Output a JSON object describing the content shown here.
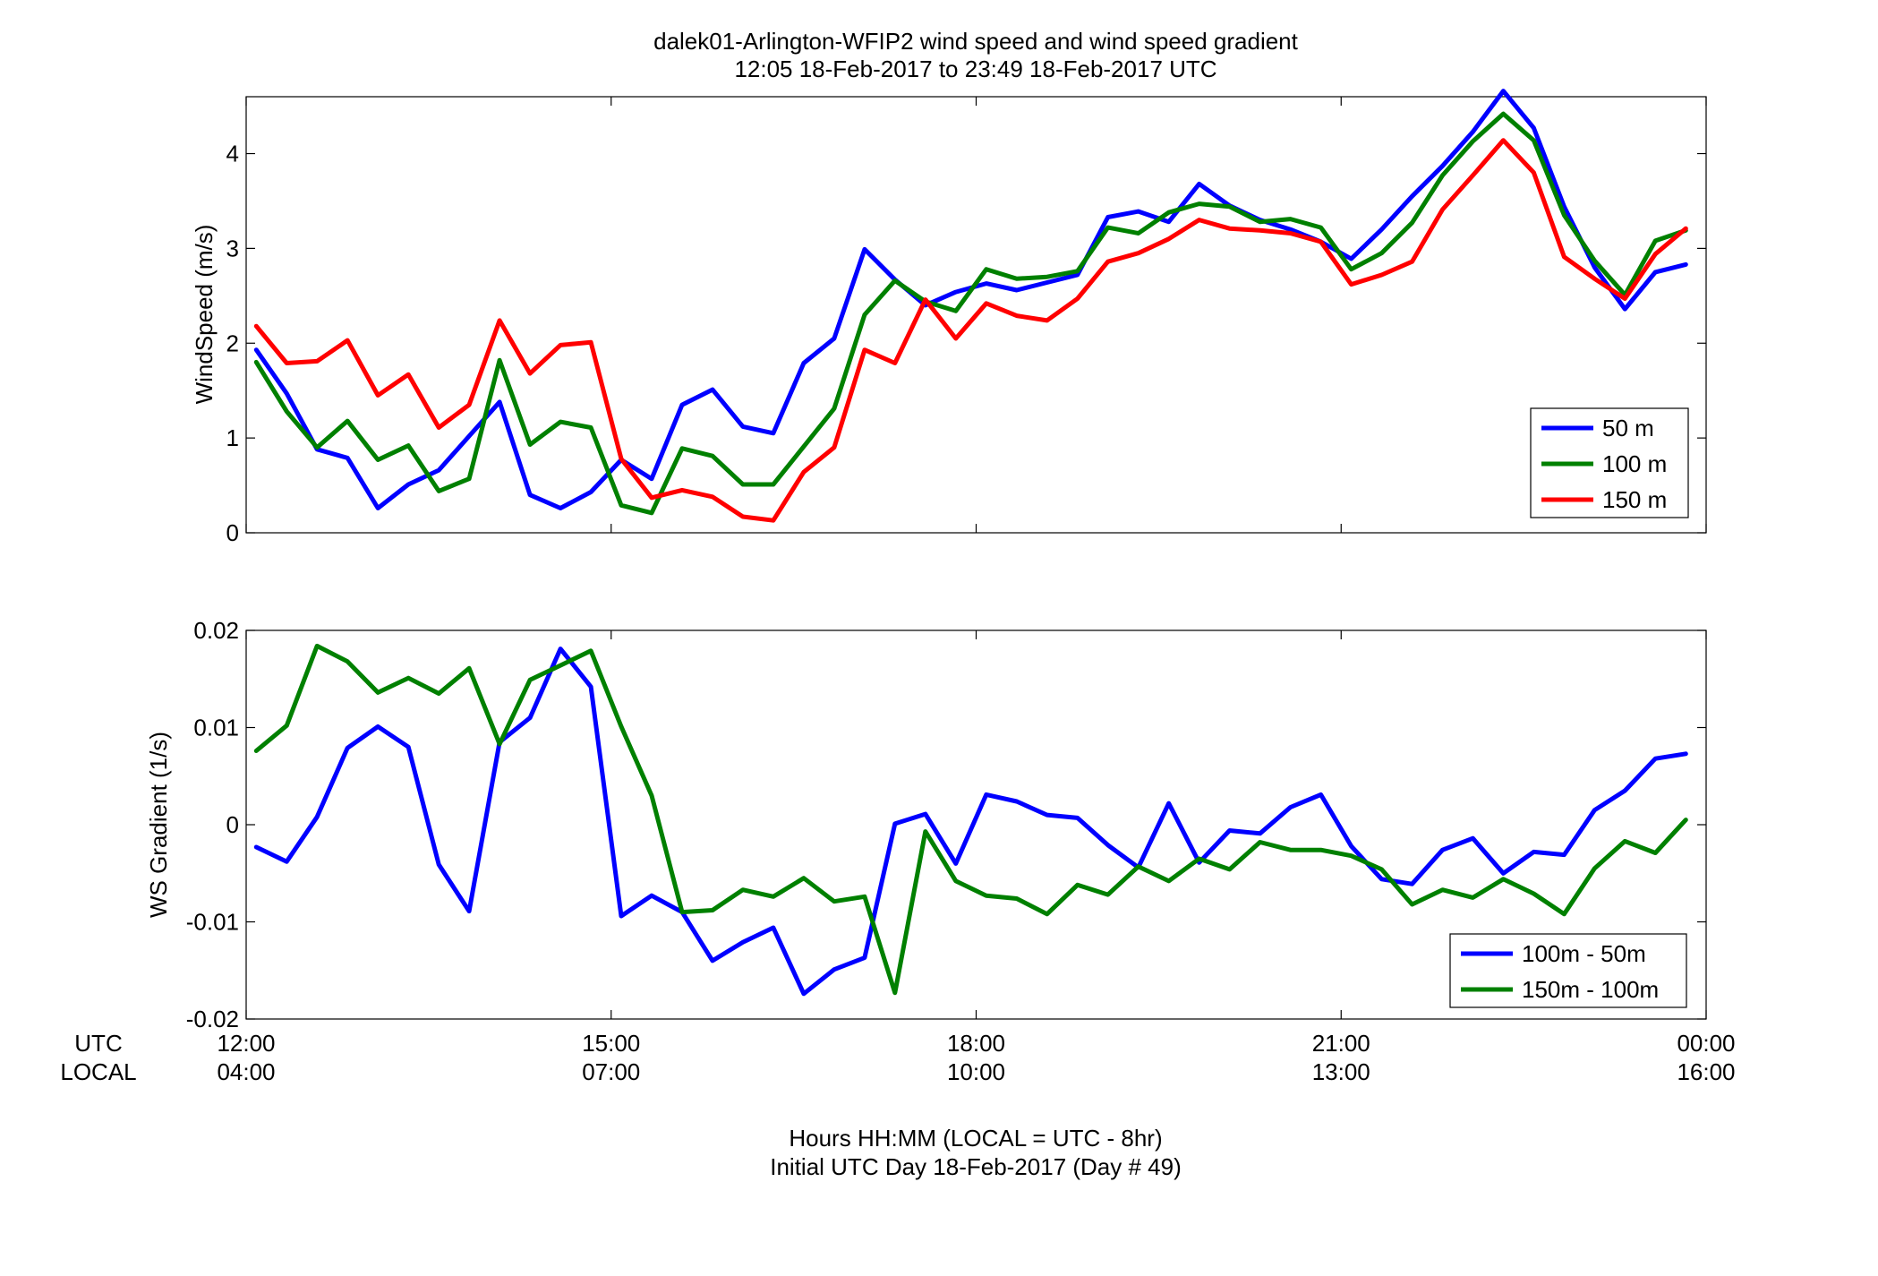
{
  "figure": {
    "title_line1": "dalek01-Arlington-WFIP2  wind speed and wind speed gradient",
    "title_line2": "12:05 18-Feb-2017 to 23:49 18-Feb-2017  UTC",
    "xlabel_line1": "Hours HH:MM  (LOCAL = UTC - 8hr)",
    "xlabel_line2": "Initial UTC Day 18-Feb-2017 (Day # 49)",
    "utc_row_label": "UTC",
    "local_row_label": "LOCAL"
  },
  "chart_data": [
    {
      "type": "line",
      "ylabel": "WindSpeed (m/s)",
      "xlim": [
        12.0,
        24.0
      ],
      "ylim": [
        0,
        4.6
      ],
      "yticks": [
        0,
        1,
        2,
        3,
        4
      ],
      "ytick_labels": [
        "0",
        "1",
        "2",
        "3",
        "4"
      ],
      "grid": false,
      "legend_position": "bottom-right",
      "x_hours": [
        12.083,
        12.333,
        12.583,
        12.833,
        13.083,
        13.333,
        13.583,
        13.833,
        14.083,
        14.333,
        14.583,
        14.833,
        15.083,
        15.333,
        15.583,
        15.833,
        16.083,
        16.333,
        16.583,
        16.833,
        17.083,
        17.333,
        17.583,
        17.833,
        18.083,
        18.333,
        18.583,
        18.833,
        19.083,
        19.333,
        19.583,
        19.833,
        20.083,
        20.333,
        20.583,
        20.833,
        21.083,
        21.333,
        21.583,
        21.833,
        22.083,
        22.333,
        22.583,
        22.833,
        23.083,
        23.333,
        23.583,
        23.833
      ],
      "series": [
        {
          "name": "50 m",
          "color": "#0000ff",
          "values": [
            1.93,
            1.47,
            0.88,
            0.79,
            0.26,
            0.51,
            0.66,
            1.02,
            1.38,
            0.4,
            0.26,
            0.43,
            0.77,
            0.57,
            1.35,
            1.51,
            1.12,
            1.05,
            1.79,
            2.05,
            2.99,
            2.67,
            2.4,
            2.54,
            2.63,
            2.56,
            2.64,
            2.72,
            3.33,
            3.39,
            3.28,
            3.68,
            3.45,
            3.3,
            3.2,
            3.07,
            2.89,
            3.2,
            3.55,
            3.87,
            4.23,
            4.66,
            4.27,
            3.44,
            2.8,
            2.36,
            2.75,
            2.83
          ]
        },
        {
          "name": "100 m",
          "color": "#008000",
          "values": [
            1.8,
            1.28,
            0.9,
            1.18,
            0.77,
            0.92,
            0.44,
            0.57,
            1.82,
            0.93,
            1.17,
            1.11,
            0.29,
            0.21,
            0.89,
            0.81,
            0.51,
            0.51,
            0.91,
            1.31,
            2.3,
            2.66,
            2.44,
            2.34,
            2.78,
            2.68,
            2.7,
            2.76,
            3.22,
            3.16,
            3.38,
            3.47,
            3.44,
            3.28,
            3.31,
            3.22,
            2.78,
            2.95,
            3.27,
            3.77,
            4.13,
            4.42,
            4.14,
            3.35,
            2.87,
            2.51,
            3.08,
            3.19
          ]
        },
        {
          "name": "150 m",
          "color": "#ff0000",
          "values": [
            2.18,
            1.79,
            1.81,
            2.03,
            1.45,
            1.67,
            1.11,
            1.35,
            2.24,
            1.68,
            1.98,
            2.01,
            0.78,
            0.37,
            0.45,
            0.38,
            0.17,
            0.13,
            0.64,
            0.9,
            1.93,
            1.79,
            2.46,
            2.05,
            2.42,
            2.29,
            2.24,
            2.47,
            2.86,
            2.95,
            3.1,
            3.3,
            3.21,
            3.19,
            3.16,
            3.07,
            2.62,
            2.72,
            2.86,
            3.41,
            3.77,
            4.14,
            3.8,
            2.91,
            2.68,
            2.47,
            2.94,
            3.21
          ]
        }
      ]
    },
    {
      "type": "line",
      "ylabel": "WS Gradient (1/s)",
      "xlim": [
        12.0,
        24.0
      ],
      "ylim": [
        -0.02,
        0.02
      ],
      "yticks": [
        -0.02,
        -0.01,
        0,
        0.01,
        0.02
      ],
      "ytick_labels": [
        "-0.02",
        "-0.01",
        "0",
        "0.01",
        "0.02"
      ],
      "grid": false,
      "legend_position": "bottom-right",
      "x_hours": [
        12.083,
        12.333,
        12.583,
        12.833,
        13.083,
        13.333,
        13.583,
        13.833,
        14.083,
        14.333,
        14.583,
        14.833,
        15.083,
        15.333,
        15.583,
        15.833,
        16.083,
        16.333,
        16.583,
        16.833,
        17.083,
        17.333,
        17.583,
        17.833,
        18.083,
        18.333,
        18.583,
        18.833,
        19.083,
        19.333,
        19.583,
        19.833,
        20.083,
        20.333,
        20.583,
        20.833,
        21.083,
        21.333,
        21.583,
        21.833,
        22.083,
        22.333,
        22.583,
        22.833,
        23.083,
        23.333,
        23.583,
        23.833
      ],
      "x_ticks": [
        12,
        15,
        18,
        21,
        24
      ],
      "utc_tick_labels": [
        "12:00",
        "15:00",
        "18:00",
        "21:00",
        "00:00"
      ],
      "local_tick_labels": [
        "04:00",
        "07:00",
        "10:00",
        "13:00",
        "16:00"
      ],
      "series": [
        {
          "name": "100m - 50m",
          "color": "#0000ff",
          "values": [
            -0.0023,
            -0.0038,
            0.0008,
            0.0079,
            0.0101,
            0.008,
            -0.0041,
            -0.0089,
            0.0085,
            0.011,
            0.0181,
            0.0142,
            -0.0094,
            -0.0073,
            -0.009,
            -0.014,
            -0.0121,
            -0.0106,
            -0.0174,
            -0.0149,
            -0.0137,
            0.0001,
            0.0011,
            -0.004,
            0.0031,
            0.0024,
            0.001,
            0.0007,
            -0.0021,
            -0.0044,
            0.0022,
            -0.0039,
            -0.0006,
            -0.0009,
            0.0018,
            0.0031,
            -0.0022,
            -0.0056,
            -0.0061,
            -0.0026,
            -0.0014,
            -0.005,
            -0.0028,
            -0.0031,
            0.0015,
            0.0035,
            0.0068,
            0.0073
          ]
        },
        {
          "name": "150m - 100m",
          "color": "#008000",
          "values": [
            0.0076,
            0.0102,
            0.0184,
            0.0168,
            0.0136,
            0.0151,
            0.0135,
            0.0161,
            0.0083,
            0.0149,
            0.0164,
            0.0179,
            0.0101,
            0.003,
            -0.009,
            -0.0088,
            -0.0067,
            -0.0074,
            -0.0055,
            -0.0079,
            -0.0074,
            -0.0173,
            -0.0007,
            -0.0058,
            -0.0073,
            -0.0076,
            -0.0092,
            -0.0062,
            -0.0072,
            -0.0043,
            -0.0058,
            -0.0035,
            -0.0046,
            -0.0018,
            -0.0026,
            -0.0026,
            -0.0032,
            -0.0046,
            -0.0082,
            -0.0067,
            -0.0075,
            -0.0056,
            -0.0071,
            -0.0092,
            -0.0045,
            -0.0017,
            -0.0029,
            0.0005
          ]
        }
      ]
    }
  ]
}
